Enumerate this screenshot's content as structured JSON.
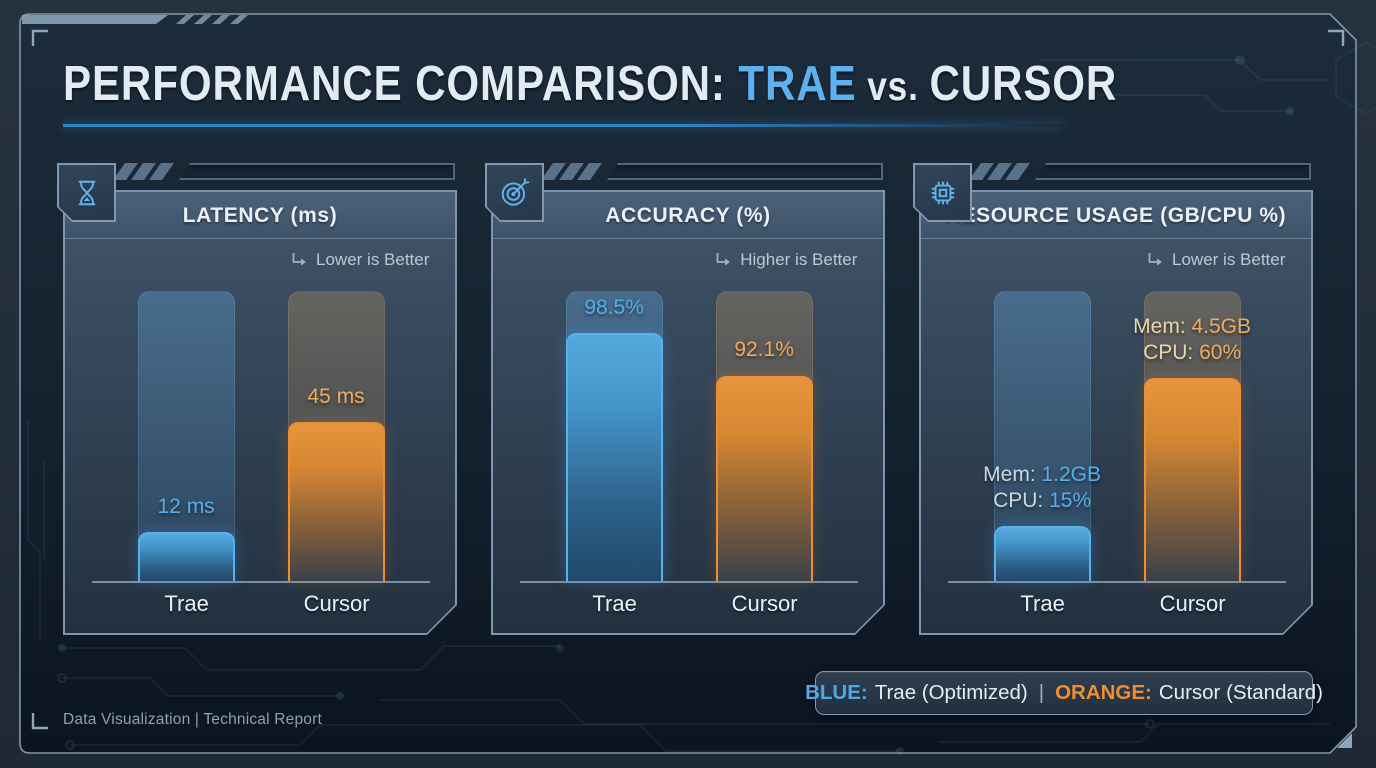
{
  "title": {
    "part_main": "PERFORMANCE COMPARISON: ",
    "part_highlight": "TRAE",
    "part_vs": " vs. ",
    "part_end": "CURSOR"
  },
  "colors": {
    "accent_blue": "#55aeee",
    "accent_orange": "#ef8d33",
    "panel_border": "#7d96ac",
    "background": "#1a2836"
  },
  "chart_data": [
    {
      "type": "bar",
      "title": "LATENCY (ms)",
      "direction_note": "Lower is Better",
      "units": "ms",
      "categories": [
        "Trae",
        "Cursor"
      ],
      "values": [
        12,
        45
      ],
      "value_labels": [
        "12 ms",
        "45 ms"
      ],
      "series_colors": [
        "blue",
        "orange"
      ],
      "legend_position": "bottom-right",
      "grid": false
    },
    {
      "type": "bar",
      "title": "ACCURACY (%)",
      "direction_note": "Higher is Better",
      "units": "%",
      "categories": [
        "Trae",
        "Cursor"
      ],
      "values": [
        98.5,
        92.1
      ],
      "value_labels": [
        "98.5%",
        "92.1%"
      ],
      "series_colors": [
        "blue",
        "orange"
      ],
      "legend_position": "bottom-right",
      "grid": false
    },
    {
      "type": "bar",
      "title": "RESOURCE USAGE (GB/CPU %)",
      "direction_note": "Lower is Better",
      "categories": [
        "Trae",
        "Cursor"
      ],
      "series": [
        {
          "name": "Memory (GB)",
          "values": [
            1.2,
            4.5
          ]
        },
        {
          "name": "CPU (%)",
          "values": [
            15,
            60
          ]
        }
      ],
      "value_labels": [
        [
          "Mem: 1.2GB",
          "CPU: 15%"
        ],
        [
          "Mem: 4.5GB",
          "CPU: 60%"
        ]
      ],
      "series_colors": [
        "blue",
        "orange"
      ],
      "legend_position": "bottom-right",
      "grid": false
    }
  ],
  "panels": [
    {
      "title": "LATENCY (ms)",
      "icon": "hourglass-icon",
      "note": "Lower is Better",
      "bars": [
        {
          "name": "Trae",
          "series": "blue",
          "height_pct": 17,
          "labels": [
            {
              "prefix": "",
              "value": "12 ms"
            }
          ]
        },
        {
          "name": "Cursor",
          "series": "orange",
          "height_pct": 55,
          "labels": [
            {
              "prefix": "",
              "value": "45 ms"
            }
          ]
        }
      ]
    },
    {
      "title": "ACCURACY (%)",
      "icon": "target-icon",
      "note": "Higher is Better",
      "bars": [
        {
          "name": "Trae",
          "series": "blue",
          "height_pct": 85.5,
          "labels": [
            {
              "prefix": "",
              "value": "98.5%"
            }
          ]
        },
        {
          "name": "Cursor",
          "series": "orange",
          "height_pct": 71,
          "labels": [
            {
              "prefix": "",
              "value": "92.1%"
            }
          ]
        }
      ]
    },
    {
      "title": "RESOURCE USAGE (GB/CPU %)",
      "icon": "cpu-chip-icon",
      "note": "Lower is Better",
      "bars": [
        {
          "name": "Trae",
          "series": "blue",
          "height_pct": 19,
          "labels": [
            {
              "prefix": "Mem: ",
              "value": "1.2GB"
            },
            {
              "prefix": "CPU: ",
              "value": "15%"
            }
          ]
        },
        {
          "name": "Cursor",
          "series": "orange",
          "height_pct": 70,
          "labels": [
            {
              "prefix": "Mem: ",
              "value": "4.5GB"
            },
            {
              "prefix": "CPU: ",
              "value": "60%"
            }
          ]
        }
      ]
    }
  ],
  "legend": {
    "blue_label": "BLUE:",
    "blue_text": " Trae (Optimized)",
    "separator": "|",
    "orange_label": "ORANGE:",
    "orange_text": " Cursor (Standard)"
  },
  "footer": {
    "text": "Data Visualization  |  Technical Report"
  }
}
